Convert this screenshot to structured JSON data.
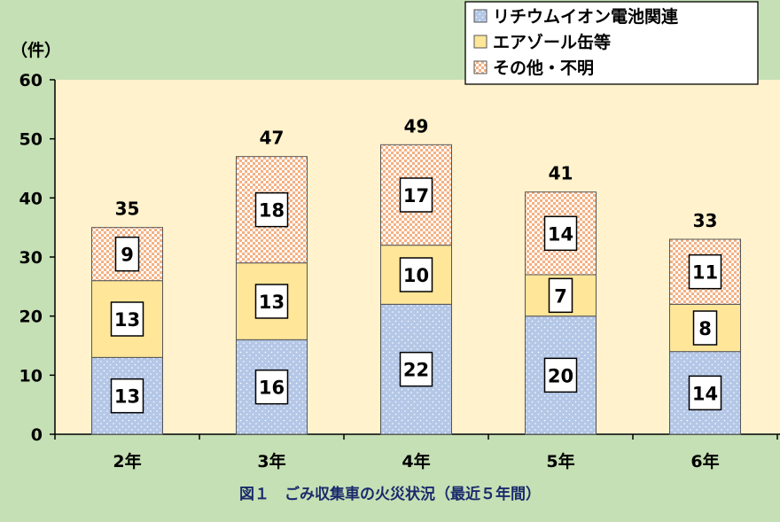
{
  "chart_data": {
    "type": "bar",
    "stacked": true,
    "title": "図１　ごみ収集車の火災状況（最近５年間）",
    "ylabel": "（件）",
    "ylim": [
      0,
      60
    ],
    "yticks": [
      0,
      10,
      20,
      30,
      40,
      50,
      60
    ],
    "categories": [
      "2年",
      "3年",
      "4年",
      "5年",
      "6年"
    ],
    "series": [
      {
        "name": "リチウムイオン電池関連",
        "values": [
          13,
          16,
          22,
          20,
          14
        ],
        "color": "#b4c7e7",
        "pattern": "dots"
      },
      {
        "name": "エアゾール缶等",
        "values": [
          13,
          13,
          10,
          7,
          8
        ],
        "color": "#ffe699",
        "pattern": "solid"
      },
      {
        "name": "その他・不明",
        "values": [
          9,
          18,
          17,
          14,
          11
        ],
        "color": "#f8cbad",
        "pattern": "checker"
      }
    ],
    "totals": [
      35,
      47,
      49,
      41,
      33
    ],
    "legend_position": "top-right",
    "plot_background": "#fff2cc",
    "grid": false
  }
}
